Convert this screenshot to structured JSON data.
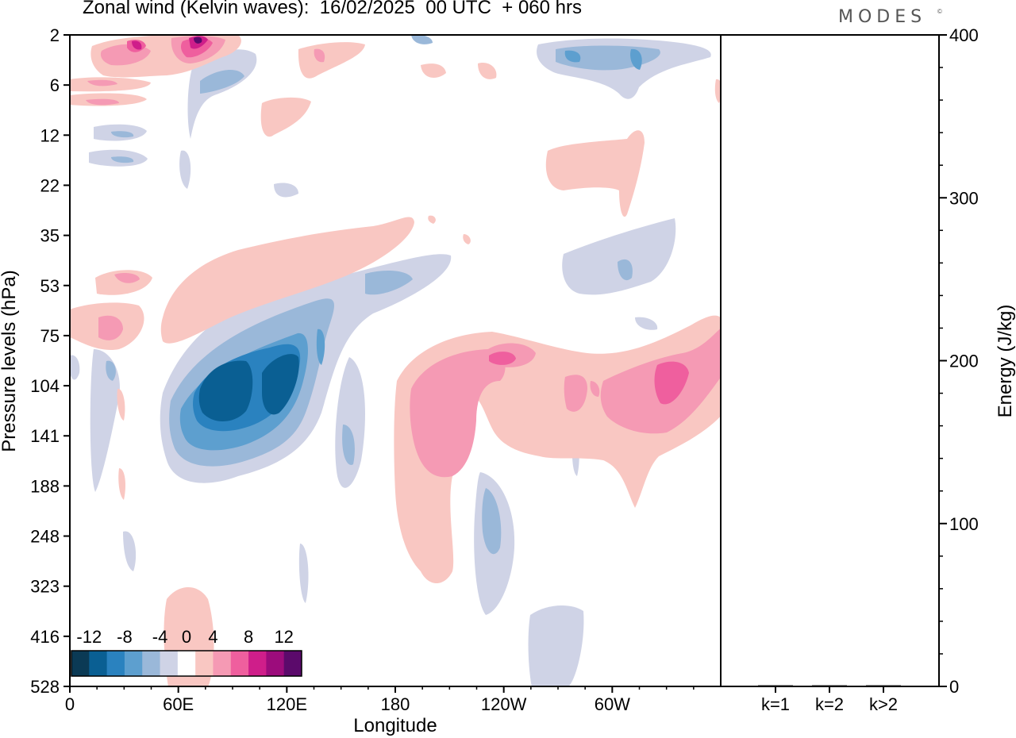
{
  "title": "Zonal wind (Kelvin waves):  16/02/2025  00 UTC  + 060 hrs",
  "brand": "MODES",
  "brand_mark": "©",
  "chart_data": [
    {
      "type": "heatmap",
      "xlabel": "Longitude",
      "ylabel": "Pressure levels (hPa)",
      "x_ticks": [
        "0",
        "60E",
        "120E",
        "180",
        "120W",
        "60W"
      ],
      "x_tick_degrees": [
        0,
        60,
        120,
        180,
        240,
        300
      ],
      "xlim": [
        0,
        360
      ],
      "y_ticks": [
        "2",
        "6",
        "12",
        "22",
        "35",
        "53",
        "75",
        "104",
        "141",
        "188",
        "248",
        "323",
        "416",
        "528"
      ],
      "y_scale": "pressure levels (reversed, 2 at top, 528 at bottom)",
      "colorbar": {
        "labels": [
          "-12",
          "-8",
          "-4",
          "0",
          "4",
          "8",
          "12"
        ],
        "levels": [
          -14,
          -12,
          -10,
          -8,
          -6,
          -4,
          -2,
          2,
          4,
          6,
          8,
          10,
          12,
          14
        ],
        "colors": [
          "#0b3a55",
          "#0a5f93",
          "#2a82bf",
          "#5d9fcf",
          "#9ab8d9",
          "#cfd3e6",
          "#ffffff",
          "#f9c7c2",
          "#f59ab4",
          "#ef5f9e",
          "#cf1e8a",
          "#9c0c7c",
          "#5b0a6b"
        ]
      },
      "features": [
        {
          "sign": "negative",
          "lon_range": [
            70,
            130
          ],
          "pressure_range": [
            75,
            188
          ],
          "peak": -12
        },
        {
          "sign": "positive",
          "lon_range": [
            180,
            360
          ],
          "pressure_range": [
            75,
            323
          ],
          "peak": 8
        },
        {
          "sign": "positive",
          "lon_range": [
            20,
            200
          ],
          "pressure_range": [
            35,
            104
          ],
          "peak": 4
        },
        {
          "sign": "negative",
          "lon_range": [
            260,
            330
          ],
          "pressure_range": [
            2,
            12
          ],
          "peak": -6
        },
        {
          "sign": "positive",
          "lon_range": [
            20,
            90
          ],
          "pressure_range": [
            2,
            6
          ],
          "peak": 10
        }
      ]
    },
    {
      "type": "bar",
      "ylabel": "Energy (J/kg)",
      "categories": [
        "k=1",
        "k=2",
        "k>2"
      ],
      "values": [
        0.5,
        0.2,
        0.6
      ],
      "ylim": [
        0,
        400
      ],
      "y_ticks": [
        "0",
        "100",
        "200",
        "300",
        "400"
      ]
    }
  ]
}
